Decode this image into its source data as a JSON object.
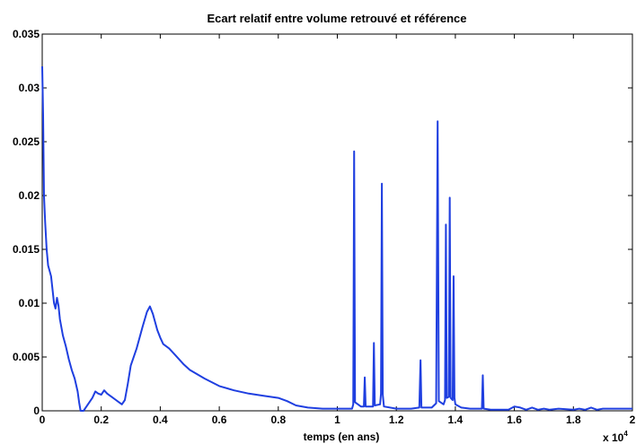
{
  "chart_data": {
    "type": "line",
    "title": "Ecart relatif entre volume retrouvé et référence",
    "xlabel": "temps (en ans)",
    "ylabel": "",
    "x_multiplier_label": {
      "base": "x 10",
      "exponent": "4"
    },
    "xlim": [
      0,
      2
    ],
    "ylim": [
      0,
      0.035
    ],
    "x_ticks": [
      {
        "value": 0,
        "label": "0"
      },
      {
        "value": 0.2,
        "label": "0.2"
      },
      {
        "value": 0.4,
        "label": "0.4"
      },
      {
        "value": 0.6,
        "label": "0.6"
      },
      {
        "value": 0.8,
        "label": "0.8"
      },
      {
        "value": 1.0,
        "label": "1"
      },
      {
        "value": 1.2,
        "label": "1.2"
      },
      {
        "value": 1.4,
        "label": "1.4"
      },
      {
        "value": 1.6,
        "label": "1.6"
      },
      {
        "value": 1.8,
        "label": "1.8"
      },
      {
        "value": 2.0,
        "label": "2"
      }
    ],
    "y_ticks": [
      {
        "value": 0,
        "label": "0"
      },
      {
        "value": 0.005,
        "label": "0.005"
      },
      {
        "value": 0.01,
        "label": "0.01"
      },
      {
        "value": 0.015,
        "label": "0.015"
      },
      {
        "value": 0.02,
        "label": "0.02"
      },
      {
        "value": 0.025,
        "label": "0.025"
      },
      {
        "value": 0.03,
        "label": "0.03"
      },
      {
        "value": 0.035,
        "label": "0.035"
      }
    ],
    "grid": false,
    "line_color": "#1f3fe0",
    "series": [
      {
        "points": [
          [
            0.0,
            0.032
          ],
          [
            0.003,
            0.0275
          ],
          [
            0.006,
            0.02
          ],
          [
            0.01,
            0.0175
          ],
          [
            0.015,
            0.015
          ],
          [
            0.02,
            0.0135
          ],
          [
            0.03,
            0.0125
          ],
          [
            0.04,
            0.01
          ],
          [
            0.045,
            0.0095
          ],
          [
            0.05,
            0.0105
          ],
          [
            0.055,
            0.0098
          ],
          [
            0.06,
            0.0085
          ],
          [
            0.07,
            0.007
          ],
          [
            0.08,
            0.006
          ],
          [
            0.09,
            0.0048
          ],
          [
            0.1,
            0.0038
          ],
          [
            0.11,
            0.003
          ],
          [
            0.12,
            0.0018
          ],
          [
            0.125,
            0.0008
          ],
          [
            0.13,
            0.0
          ],
          [
            0.14,
            0.0
          ],
          [
            0.15,
            0.0004
          ],
          [
            0.17,
            0.0012
          ],
          [
            0.18,
            0.0018
          ],
          [
            0.19,
            0.0016
          ],
          [
            0.2,
            0.0015
          ],
          [
            0.21,
            0.0019
          ],
          [
            0.22,
            0.0016
          ],
          [
            0.24,
            0.0012
          ],
          [
            0.26,
            0.0008
          ],
          [
            0.27,
            0.0006
          ],
          [
            0.28,
            0.001
          ],
          [
            0.29,
            0.0025
          ],
          [
            0.3,
            0.0042
          ],
          [
            0.32,
            0.0058
          ],
          [
            0.34,
            0.0078
          ],
          [
            0.355,
            0.0092
          ],
          [
            0.365,
            0.0097
          ],
          [
            0.375,
            0.009
          ],
          [
            0.39,
            0.0075
          ],
          [
            0.4,
            0.0068
          ],
          [
            0.41,
            0.0062
          ],
          [
            0.43,
            0.0058
          ],
          [
            0.45,
            0.0052
          ],
          [
            0.48,
            0.0043
          ],
          [
            0.5,
            0.0038
          ],
          [
            0.55,
            0.003
          ],
          [
            0.6,
            0.0023
          ],
          [
            0.65,
            0.0019
          ],
          [
            0.7,
            0.0016
          ],
          [
            0.75,
            0.0014
          ],
          [
            0.8,
            0.0012
          ],
          [
            0.83,
            0.0009
          ],
          [
            0.86,
            0.0005
          ],
          [
            0.9,
            0.0003
          ],
          [
            0.95,
            0.0002
          ],
          [
            1.0,
            0.0002
          ],
          [
            1.05,
            0.0002
          ],
          [
            1.054,
            0.0006
          ],
          [
            1.057,
            0.0241
          ],
          [
            1.06,
            0.0008
          ],
          [
            1.08,
            0.0004
          ],
          [
            1.09,
            0.0004
          ],
          [
            1.093,
            0.0031
          ],
          [
            1.096,
            0.0004
          ],
          [
            1.11,
            0.0004
          ],
          [
            1.121,
            0.0004
          ],
          [
            1.124,
            0.0063
          ],
          [
            1.127,
            0.0005
          ],
          [
            1.145,
            0.0006
          ],
          [
            1.148,
            0.0016
          ],
          [
            1.151,
            0.0211
          ],
          [
            1.154,
            0.0015
          ],
          [
            1.158,
            0.0004
          ],
          [
            1.2,
            0.0002
          ],
          [
            1.25,
            0.0002
          ],
          [
            1.278,
            0.0003
          ],
          [
            1.282,
            0.0047
          ],
          [
            1.285,
            0.0003
          ],
          [
            1.32,
            0.0003
          ],
          [
            1.335,
            0.0007
          ],
          [
            1.34,
            0.0269
          ],
          [
            1.344,
            0.0009
          ],
          [
            1.36,
            0.0006
          ],
          [
            1.365,
            0.001
          ],
          [
            1.368,
            0.0173
          ],
          [
            1.371,
            0.0012
          ],
          [
            1.378,
            0.0013
          ],
          [
            1.381,
            0.0198
          ],
          [
            1.384,
            0.0012
          ],
          [
            1.391,
            0.001
          ],
          [
            1.394,
            0.0125
          ],
          [
            1.397,
            0.0012
          ],
          [
            1.4,
            0.0006
          ],
          [
            1.42,
            0.0003
          ],
          [
            1.45,
            0.0002
          ],
          [
            1.49,
            0.0002
          ],
          [
            1.493,
            0.0033
          ],
          [
            1.496,
            0.0002
          ],
          [
            1.52,
            0.0001
          ],
          [
            1.55,
            0.0001
          ],
          [
            1.58,
            0.0001
          ],
          [
            1.6,
            0.0004
          ],
          [
            1.62,
            0.0003
          ],
          [
            1.64,
            0.0001
          ],
          [
            1.66,
            0.0003
          ],
          [
            1.68,
            0.0001
          ],
          [
            1.7,
            0.0002
          ],
          [
            1.72,
            0.0001
          ],
          [
            1.75,
            0.0002
          ],
          [
            1.8,
            0.0001
          ],
          [
            1.82,
            0.0002
          ],
          [
            1.84,
            0.0001
          ],
          [
            1.86,
            0.0003
          ],
          [
            1.88,
            0.0001
          ],
          [
            1.9,
            0.0002
          ],
          [
            1.95,
            0.0002
          ],
          [
            2.0,
            0.0002
          ]
        ]
      }
    ]
  }
}
